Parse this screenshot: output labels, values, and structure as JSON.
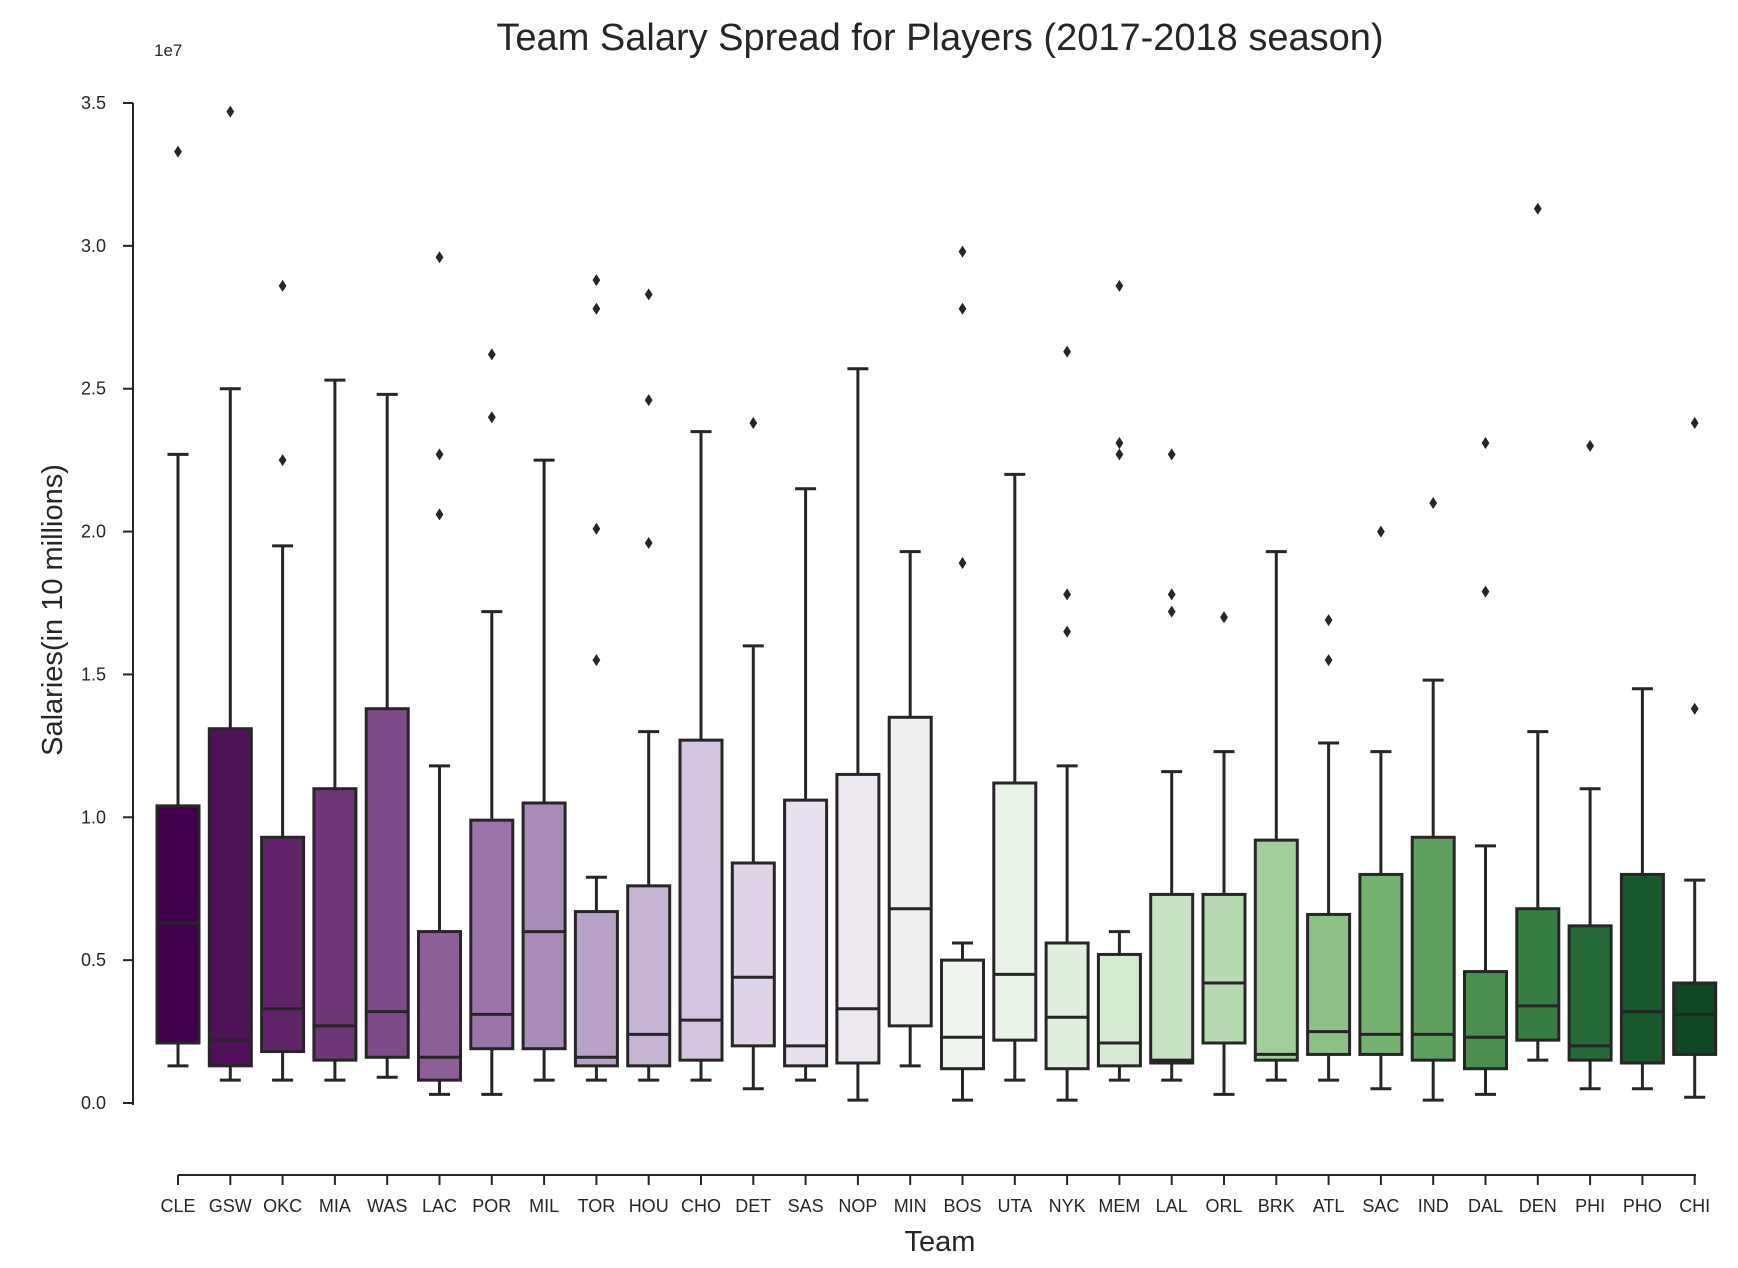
{
  "chart_data": {
    "type": "box",
    "title": "Team Salary Spread for Players (2017-2018 season)",
    "xlabel": "Team",
    "ylabel": "Salaries(in 10 millions)",
    "y_offset_label": "1e7",
    "ylim": [
      0,
      3.5
    ],
    "y_ticks": [
      "0.0",
      "0.5",
      "1.0",
      "1.5",
      "2.0",
      "2.5",
      "3.0",
      "3.5"
    ],
    "grid": false,
    "legend": "none",
    "palette": "purple-to-green (PRGn)",
    "categories": [
      "CLE",
      "GSW",
      "OKC",
      "MIA",
      "WAS",
      "LAC",
      "POR",
      "MIL",
      "TOR",
      "HOU",
      "CHO",
      "DET",
      "SAS",
      "NOP",
      "MIN",
      "BOS",
      "UTA",
      "NYK",
      "MEM",
      "LAL",
      "ORL",
      "BRK",
      "ATL",
      "SAC",
      "IND",
      "DAL",
      "DEN",
      "PHI",
      "PHO",
      "CHI"
    ],
    "boxes": [
      {
        "team": "CLE",
        "color": "#40004b",
        "whislo": 0.13,
        "q1": 0.21,
        "med": 0.63,
        "q3": 1.04,
        "whishi": 2.27,
        "fliers": [
          3.33
        ]
      },
      {
        "team": "GSW",
        "color": "#4f1259",
        "whislo": 0.08,
        "q1": 0.13,
        "med": 0.22,
        "q3": 1.31,
        "whishi": 2.5,
        "fliers": [
          3.47
        ]
      },
      {
        "team": "OKC",
        "color": "#5f2468",
        "whislo": 0.08,
        "q1": 0.18,
        "med": 0.33,
        "q3": 0.93,
        "whishi": 1.95,
        "fliers": [
          2.25,
          2.86
        ]
      },
      {
        "team": "MIA",
        "color": "#6f3677",
        "whislo": 0.08,
        "q1": 0.15,
        "med": 0.27,
        "q3": 1.1,
        "whishi": 2.53,
        "fliers": []
      },
      {
        "team": "WAS",
        "color": "#7e4a88",
        "whislo": 0.09,
        "q1": 0.16,
        "med": 0.32,
        "q3": 1.38,
        "whishi": 2.48,
        "fliers": []
      },
      {
        "team": "LAC",
        "color": "#8d5f99",
        "whislo": 0.03,
        "q1": 0.08,
        "med": 0.16,
        "q3": 0.6,
        "whishi": 1.18,
        "fliers": [
          2.06,
          2.27,
          2.96
        ]
      },
      {
        "team": "POR",
        "color": "#9b75a9",
        "whislo": 0.03,
        "q1": 0.19,
        "med": 0.31,
        "q3": 0.99,
        "whishi": 1.72,
        "fliers": [
          2.4,
          2.62
        ]
      },
      {
        "team": "MIL",
        "color": "#a98bb8",
        "whislo": 0.08,
        "q1": 0.19,
        "med": 0.6,
        "q3": 1.05,
        "whishi": 2.25,
        "fliers": []
      },
      {
        "team": "TOR",
        "color": "#b8a1c6",
        "whislo": 0.08,
        "q1": 0.13,
        "med": 0.16,
        "q3": 0.67,
        "whishi": 0.79,
        "fliers": [
          1.55,
          2.01,
          2.78,
          2.88
        ]
      },
      {
        "team": "HOU",
        "color": "#c6b4d3",
        "whislo": 0.08,
        "q1": 0.13,
        "med": 0.24,
        "q3": 0.76,
        "whishi": 1.3,
        "fliers": [
          1.96,
          2.46,
          2.83
        ]
      },
      {
        "team": "CHO",
        "color": "#d3c4df",
        "whislo": 0.08,
        "q1": 0.15,
        "med": 0.29,
        "q3": 1.27,
        "whishi": 2.35,
        "fliers": []
      },
      {
        "team": "DET",
        "color": "#dfd3e8",
        "whislo": 0.05,
        "q1": 0.2,
        "med": 0.44,
        "q3": 0.84,
        "whishi": 1.6,
        "fliers": [
          2.38
        ]
      },
      {
        "team": "SAS",
        "color": "#e8dfef",
        "whislo": 0.08,
        "q1": 0.13,
        "med": 0.2,
        "q3": 1.06,
        "whishi": 2.15,
        "fliers": []
      },
      {
        "team": "NOP",
        "color": "#ede7f0",
        "whislo": 0.01,
        "q1": 0.14,
        "med": 0.33,
        "q3": 1.15,
        "whishi": 2.57,
        "fliers": []
      },
      {
        "team": "MIN",
        "color": "#f1eef2",
        "whislo": 0.13,
        "q1": 0.27,
        "med": 0.68,
        "q3": 1.35,
        "whishi": 1.93,
        "fliers": []
      },
      {
        "team": "BOS",
        "color": "#f0f4ef",
        "whislo": 0.01,
        "q1": 0.12,
        "med": 0.23,
        "q3": 0.5,
        "whishi": 0.56,
        "fliers": [
          1.89,
          2.78,
          2.98
        ]
      },
      {
        "team": "UTA",
        "color": "#e8f2e7",
        "whislo": 0.08,
        "q1": 0.22,
        "med": 0.45,
        "q3": 1.12,
        "whishi": 2.2,
        "fliers": []
      },
      {
        "team": "NYK",
        "color": "#e0efde",
        "whislo": 0.01,
        "q1": 0.12,
        "med": 0.3,
        "q3": 0.56,
        "whishi": 1.18,
        "fliers": [
          1.65,
          1.78,
          2.63
        ]
      },
      {
        "team": "MEM",
        "color": "#d6ead3",
        "whislo": 0.08,
        "q1": 0.13,
        "med": 0.21,
        "q3": 0.52,
        "whishi": 0.6,
        "fliers": [
          2.27,
          2.31,
          2.86
        ]
      },
      {
        "team": "LAL",
        "color": "#c8e4c4",
        "whislo": 0.08,
        "q1": 0.14,
        "med": 0.15,
        "q3": 0.73,
        "whishi": 1.16,
        "fliers": [
          1.72,
          1.78,
          2.27
        ]
      },
      {
        "team": "ORL",
        "color": "#b8dab2",
        "whislo": 0.03,
        "q1": 0.21,
        "med": 0.42,
        "q3": 0.73,
        "whishi": 1.23,
        "fliers": [
          1.7
        ]
      },
      {
        "team": "BRK",
        "color": "#a2cd9c",
        "whislo": 0.08,
        "q1": 0.15,
        "med": 0.17,
        "q3": 0.92,
        "whishi": 1.93,
        "fliers": []
      },
      {
        "team": "ATL",
        "color": "#8cc086",
        "whislo": 0.08,
        "q1": 0.17,
        "med": 0.25,
        "q3": 0.66,
        "whishi": 1.26,
        "fliers": [
          1.55,
          1.69
        ]
      },
      {
        "team": "SAC",
        "color": "#75b171",
        "whislo": 0.05,
        "q1": 0.17,
        "med": 0.24,
        "q3": 0.8,
        "whishi": 1.23,
        "fliers": [
          2.0
        ]
      },
      {
        "team": "IND",
        "color": "#5fa05f",
        "whislo": 0.01,
        "q1": 0.15,
        "med": 0.24,
        "q3": 0.93,
        "whishi": 1.48,
        "fliers": [
          2.1
        ]
      },
      {
        "team": "DAL",
        "color": "#4a8f50",
        "whislo": 0.03,
        "q1": 0.12,
        "med": 0.23,
        "q3": 0.46,
        "whishi": 0.9,
        "fliers": [
          1.79,
          2.31
        ]
      },
      {
        "team": "DEN",
        "color": "#367d43",
        "whislo": 0.15,
        "q1": 0.22,
        "med": 0.34,
        "q3": 0.68,
        "whishi": 1.3,
        "fliers": [
          3.13
        ]
      },
      {
        "team": "PHI",
        "color": "#246b37",
        "whislo": 0.05,
        "q1": 0.15,
        "med": 0.2,
        "q3": 0.62,
        "whishi": 1.1,
        "fliers": [
          2.3
        ]
      },
      {
        "team": "PHO",
        "color": "#17592c",
        "whislo": 0.05,
        "q1": 0.14,
        "med": 0.32,
        "q3": 0.8,
        "whishi": 1.45,
        "fliers": []
      },
      {
        "team": "CHI",
        "color": "#0f4823",
        "whislo": 0.02,
        "q1": 0.17,
        "med": 0.31,
        "q3": 0.42,
        "whishi": 0.78,
        "fliers": [
          1.38,
          2.38
        ]
      }
    ]
  }
}
